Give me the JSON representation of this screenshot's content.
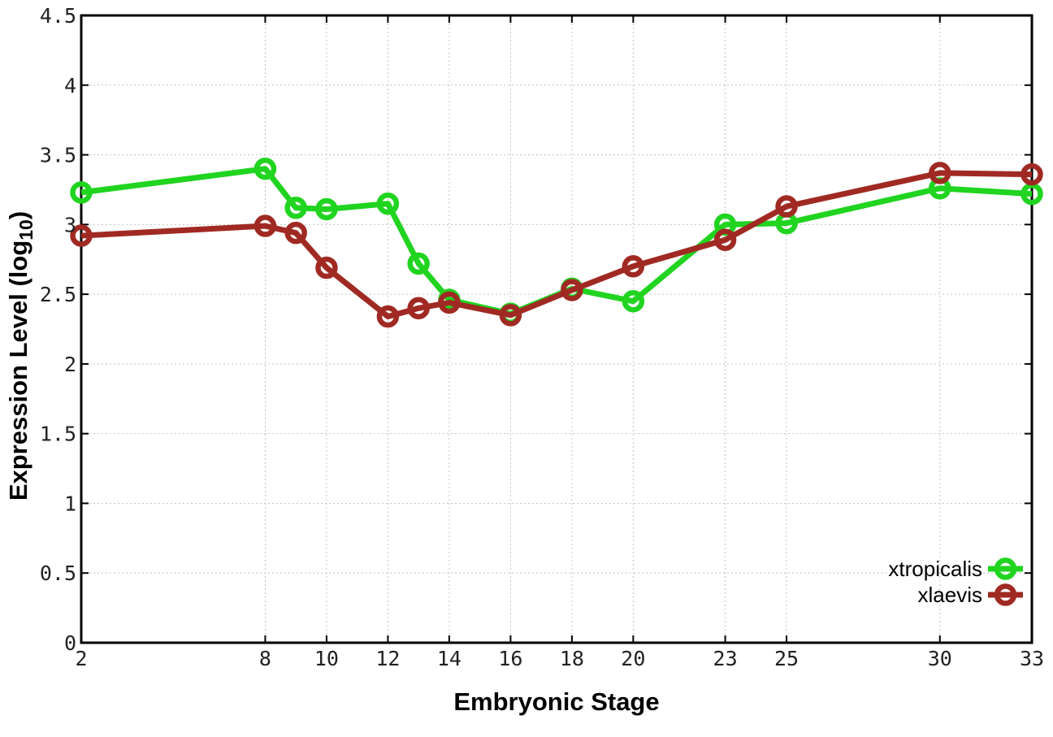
{
  "chart_data": {
    "type": "line",
    "title": "",
    "xlabel": "Embryonic Stage",
    "ylabel": {
      "text": "Expression Level (log",
      "subscript": "10",
      "suffix": ")"
    },
    "xlim": [
      2,
      33
    ],
    "ylim": [
      0,
      4.5
    ],
    "x_ticks": [
      2,
      8,
      10,
      12,
      14,
      16,
      18,
      20,
      23,
      25,
      30,
      33
    ],
    "y_ticks": [
      0,
      0.5,
      1,
      1.5,
      2,
      2.5,
      3,
      3.5,
      4,
      4.5
    ],
    "grid": "dotted",
    "legend": {
      "position": "inside-bottom-right"
    },
    "series": [
      {
        "name": "xtropicalis",
        "color": "#20d420",
        "marker": "open-circle",
        "x": [
          2,
          8,
          9,
          10,
          12,
          13,
          14,
          16,
          18,
          20,
          23,
          25,
          30,
          33
        ],
        "y": [
          3.23,
          3.4,
          3.12,
          3.11,
          3.15,
          2.72,
          2.46,
          2.36,
          2.54,
          2.45,
          3.0,
          3.01,
          3.26,
          3.22
        ]
      },
      {
        "name": "xlaevis",
        "color": "#a02a23",
        "marker": "open-circle",
        "x": [
          2,
          8,
          9,
          10,
          12,
          13,
          14,
          16,
          18,
          20,
          23,
          25,
          30,
          33
        ],
        "y": [
          2.92,
          2.99,
          2.94,
          2.69,
          2.34,
          2.4,
          2.44,
          2.35,
          2.53,
          2.7,
          2.89,
          3.13,
          3.37,
          3.36
        ]
      }
    ],
    "styles": {
      "background": "#ffffff",
      "grid_color": "#c4c4c4",
      "axis_color": "#000000",
      "tick_label_color": "#222222",
      "title_color": "#000000",
      "line_width": 7,
      "marker_radius": 10.5,
      "marker_stroke": 6.5
    }
  }
}
